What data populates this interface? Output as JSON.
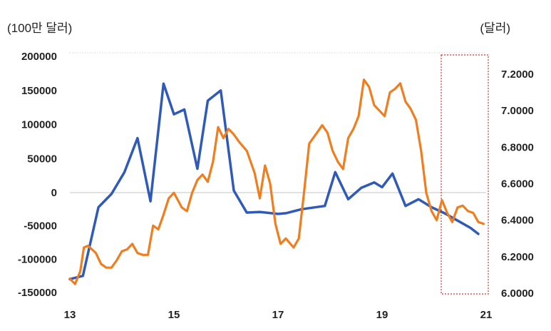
{
  "chart_data": {
    "type": "line",
    "ylabel_left": "(100만 달러)",
    "ylabel_right": "(달러)",
    "x_ticks": [
      "13",
      "15",
      "17",
      "19",
      "21"
    ],
    "x_tick_values": [
      2013,
      2015,
      2017,
      2019,
      2021
    ],
    "xlim": [
      2013,
      2021
    ],
    "left_y_ticks": [
      "200000",
      "150000",
      "100000",
      "50000",
      "0",
      "-50000",
      "-100000",
      "-150000"
    ],
    "left_y_tick_values": [
      200000,
      150000,
      100000,
      50000,
      0,
      -50000,
      -100000,
      -150000
    ],
    "left_ylim": [
      -150000,
      200000
    ],
    "right_y_ticks": [
      "7.2000",
      "7.0000",
      "6.8000",
      "6.6000",
      "6.4000",
      "6.2000",
      "6.0000"
    ],
    "right_y_tick_values": [
      7.2,
      7.0,
      6.8,
      6.6,
      6.4,
      6.2,
      6.0
    ],
    "right_ylim": [
      6.0,
      7.3
    ],
    "grid": false,
    "series": [
      {
        "axis": "left",
        "color": "#2f5ab8",
        "x": [
          2013.0,
          2013.25,
          2013.55,
          2013.8,
          2014.05,
          2014.3,
          2014.55,
          2014.8,
          2015.0,
          2015.2,
          2015.45,
          2015.65,
          2015.9,
          2016.15,
          2016.4,
          2016.65,
          2017.0,
          2017.15,
          2017.45,
          2017.9,
          2018.1,
          2018.35,
          2018.6,
          2018.85,
          2019.0,
          2019.2,
          2019.45,
          2019.7,
          2019.95,
          2020.2,
          2020.45,
          2020.7,
          2020.85
        ],
        "values": [
          -130000,
          -125000,
          -22000,
          -2000,
          30000,
          80000,
          -13000,
          160000,
          115000,
          122000,
          35000,
          135000,
          150000,
          3000,
          -30000,
          -29000,
          -32000,
          -31000,
          -25000,
          -20000,
          30000,
          -10000,
          7000,
          15000,
          8000,
          28000,
          -20000,
          -10000,
          -22000,
          -31000,
          -42000,
          -53000,
          -62000
        ]
      },
      {
        "axis": "right",
        "color": "#f07d1e",
        "x": [
          2013.0,
          2013.1,
          2013.2,
          2013.27,
          2013.35,
          2013.5,
          2013.6,
          2013.7,
          2013.8,
          2013.9,
          2014.0,
          2014.1,
          2014.2,
          2014.3,
          2014.4,
          2014.5,
          2014.6,
          2014.7,
          2014.8,
          2014.9,
          2015.0,
          2015.15,
          2015.25,
          2015.35,
          2015.45,
          2015.55,
          2015.65,
          2015.75,
          2015.85,
          2015.95,
          2016.05,
          2016.15,
          2016.25,
          2016.4,
          2016.55,
          2016.65,
          2016.75,
          2016.85,
          2016.95,
          2017.05,
          2017.15,
          2017.3,
          2017.4,
          2017.5,
          2017.6,
          2017.75,
          2017.85,
          2017.95,
          2018.05,
          2018.15,
          2018.25,
          2018.35,
          2018.45,
          2018.55,
          2018.65,
          2018.75,
          2018.85,
          2018.95,
          2019.05,
          2019.15,
          2019.25,
          2019.35,
          2019.45,
          2019.55,
          2019.65,
          2019.75,
          2019.85,
          2019.95,
          2020.05,
          2020.15,
          2020.25,
          2020.35,
          2020.45,
          2020.55,
          2020.65,
          2020.75,
          2020.85,
          2020.95
        ],
        "values": [
          6.08,
          6.05,
          6.12,
          6.25,
          6.26,
          6.22,
          6.16,
          6.14,
          6.14,
          6.18,
          6.23,
          6.24,
          6.27,
          6.22,
          6.21,
          6.21,
          6.37,
          6.35,
          6.43,
          6.52,
          6.55,
          6.47,
          6.45,
          6.55,
          6.62,
          6.65,
          6.61,
          6.72,
          6.91,
          6.85,
          6.9,
          6.87,
          6.83,
          6.78,
          6.66,
          6.52,
          6.7,
          6.6,
          6.38,
          6.27,
          6.3,
          6.25,
          6.3,
          6.55,
          6.82,
          6.88,
          6.92,
          6.88,
          6.78,
          6.72,
          6.68,
          6.85,
          6.9,
          6.97,
          7.17,
          7.13,
          7.03,
          7.0,
          6.97,
          7.1,
          7.12,
          7.15,
          7.05,
          7.01,
          6.95,
          6.78,
          6.55,
          6.45,
          6.4,
          6.51,
          6.44,
          6.39,
          6.47,
          6.48,
          6.45,
          6.44,
          6.39,
          6.38
        ]
      }
    ],
    "highlight_region": {
      "x": [
        2020.2,
        2020.95
      ],
      "style": "dotted-red-box"
    }
  }
}
